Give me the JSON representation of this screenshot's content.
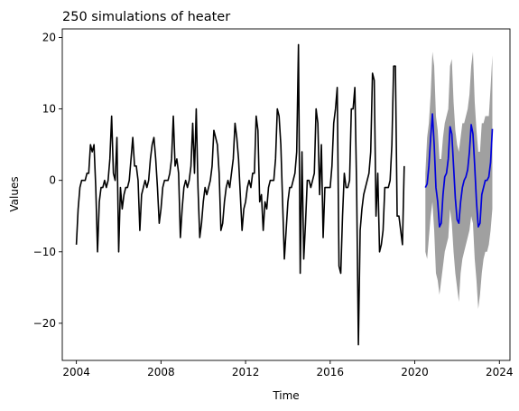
{
  "chart_data": {
    "type": "line",
    "title": "250 simulations of heater",
    "xlabel": "Time",
    "ylabel": "Values",
    "xlim": [
      "2003-05-01",
      "2024-07-01"
    ],
    "ylim": [
      -25.2,
      21.2
    ],
    "x_ticks": [
      {
        "label": "2004",
        "date": "2004-01-01"
      },
      {
        "label": "2008",
        "date": "2008-01-01"
      },
      {
        "label": "2012",
        "date": "2012-01-01"
      },
      {
        "label": "2016",
        "date": "2016-01-01"
      },
      {
        "label": "2020",
        "date": "2020-01-01"
      },
      {
        "label": "2024",
        "date": "2024-01-01"
      }
    ],
    "y_ticks": [
      20,
      10,
      0,
      -10,
      -20
    ],
    "grid": false,
    "colors": {
      "observed": "#000000",
      "simulations": "#a0a0a0",
      "mean": "#0000dd"
    },
    "series": [
      {
        "start": "2004-01",
        "values": [
          -9,
          -4,
          -1,
          0,
          0,
          0,
          1,
          1,
          5,
          4,
          5,
          -1,
          -10,
          -3,
          -1,
          -1,
          0,
          -1,
          0,
          3,
          9,
          1,
          0,
          6,
          -10,
          -1,
          -4,
          -2,
          -1,
          -1,
          0,
          3,
          6,
          2,
          2,
          0,
          -7,
          -2,
          -1,
          0,
          -1,
          0,
          3,
          5,
          6,
          3,
          -1,
          -6,
          -4,
          -1,
          0,
          0,
          0,
          1,
          3,
          9,
          2,
          3,
          1,
          -8,
          -4,
          -1,
          0,
          -1,
          0,
          2,
          8,
          1,
          10,
          -1,
          -8,
          -6,
          -3,
          -1,
          -2,
          -1,
          0,
          2,
          7,
          6,
          5,
          1,
          -7,
          -6,
          -3,
          -1,
          0,
          -1,
          1,
          3,
          8,
          6,
          3,
          -2,
          -7,
          -4,
          -3,
          -1,
          0,
          -1,
          1,
          1,
          9,
          7,
          -3,
          -2,
          -7,
          -3,
          -4,
          -1,
          0,
          0,
          0,
          3,
          10,
          9,
          5,
          -3,
          -11,
          -7,
          -3,
          -1,
          -1,
          0,
          1,
          4,
          19,
          -13,
          4,
          -11,
          -6,
          0,
          0,
          -1,
          0,
          1,
          10,
          8,
          -2,
          5,
          -8,
          -1,
          -1,
          -1,
          -1,
          2,
          8,
          10,
          13,
          -12,
          -13,
          -5,
          1,
          -1,
          -1,
          0,
          10,
          10,
          13,
          -1,
          -23,
          -7,
          -4,
          -2,
          -1,
          0,
          1,
          4,
          15,
          14,
          -5,
          1,
          -10,
          -9,
          -7,
          -1,
          -1,
          -1,
          0,
          5,
          16,
          16,
          -5,
          -5,
          -7,
          -9,
          2
        ]
      },
      {
        "start": "2020-07",
        "mean": [
          -1,
          -0.5,
          2,
          6,
          9.3,
          5,
          -1,
          -3,
          -6.5,
          -6,
          -2,
          0.5,
          1,
          3,
          7.5,
          6.5,
          2,
          -2.5,
          -5.5,
          -6,
          -3,
          -1,
          0,
          0.5,
          1.5,
          4,
          7.8,
          6.5,
          2,
          -3,
          -6.5,
          -6,
          -2,
          -1,
          0,
          0,
          0.5,
          2.5,
          7.2
        ],
        "upper": [
          1,
          6,
          8,
          12,
          18,
          16,
          9,
          7,
          3,
          3,
          6,
          8,
          9,
          10,
          16,
          17,
          11,
          7,
          5,
          4,
          6,
          8,
          8,
          9,
          10,
          12,
          16,
          18,
          11,
          7,
          4,
          4,
          8,
          8,
          9,
          9,
          9,
          13,
          17.5
        ],
        "lower": [
          -10,
          -11,
          -8,
          -5,
          -3,
          -7,
          -13,
          -14,
          -16,
          -14,
          -12,
          -10,
          -9,
          -8,
          -4,
          -6,
          -10,
          -13,
          -15,
          -17,
          -13,
          -11,
          -10,
          -9,
          -8,
          -7,
          -5,
          -6,
          -11,
          -14,
          -18,
          -16,
          -13,
          -11,
          -10,
          -10,
          -9,
          -7,
          -4
        ]
      }
    ]
  }
}
